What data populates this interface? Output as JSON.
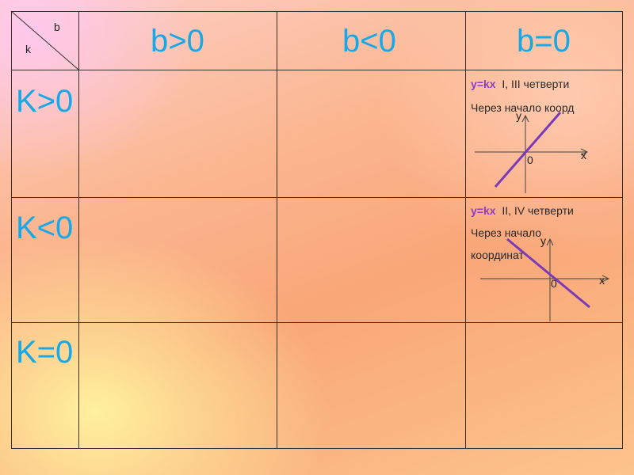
{
  "corner": {
    "b_label": "b",
    "k_label": "k"
  },
  "columns": [
    "b>0",
    "b<0",
    "b=0"
  ],
  "rows": [
    "K>0",
    "K<0",
    "K=0"
  ],
  "cell_k_pos_b_zero": {
    "formula": "y=kx",
    "quadrants": "I, III   четверти",
    "line1": "Через начало коорд",
    "axis_y": "y",
    "axis_x": "x",
    "origin": "0"
  },
  "cell_k_neg_b_zero": {
    "formula": "y=kx",
    "quadrants": "II, IV   четверти",
    "line1": "Через начало",
    "line2": "координат",
    "axis_y": "y",
    "axis_x": "x",
    "origin": "0"
  },
  "colors": {
    "header_text": "#17a8e8",
    "formula": "#8f3cc0",
    "graph_line": "#7a3ab8"
  }
}
